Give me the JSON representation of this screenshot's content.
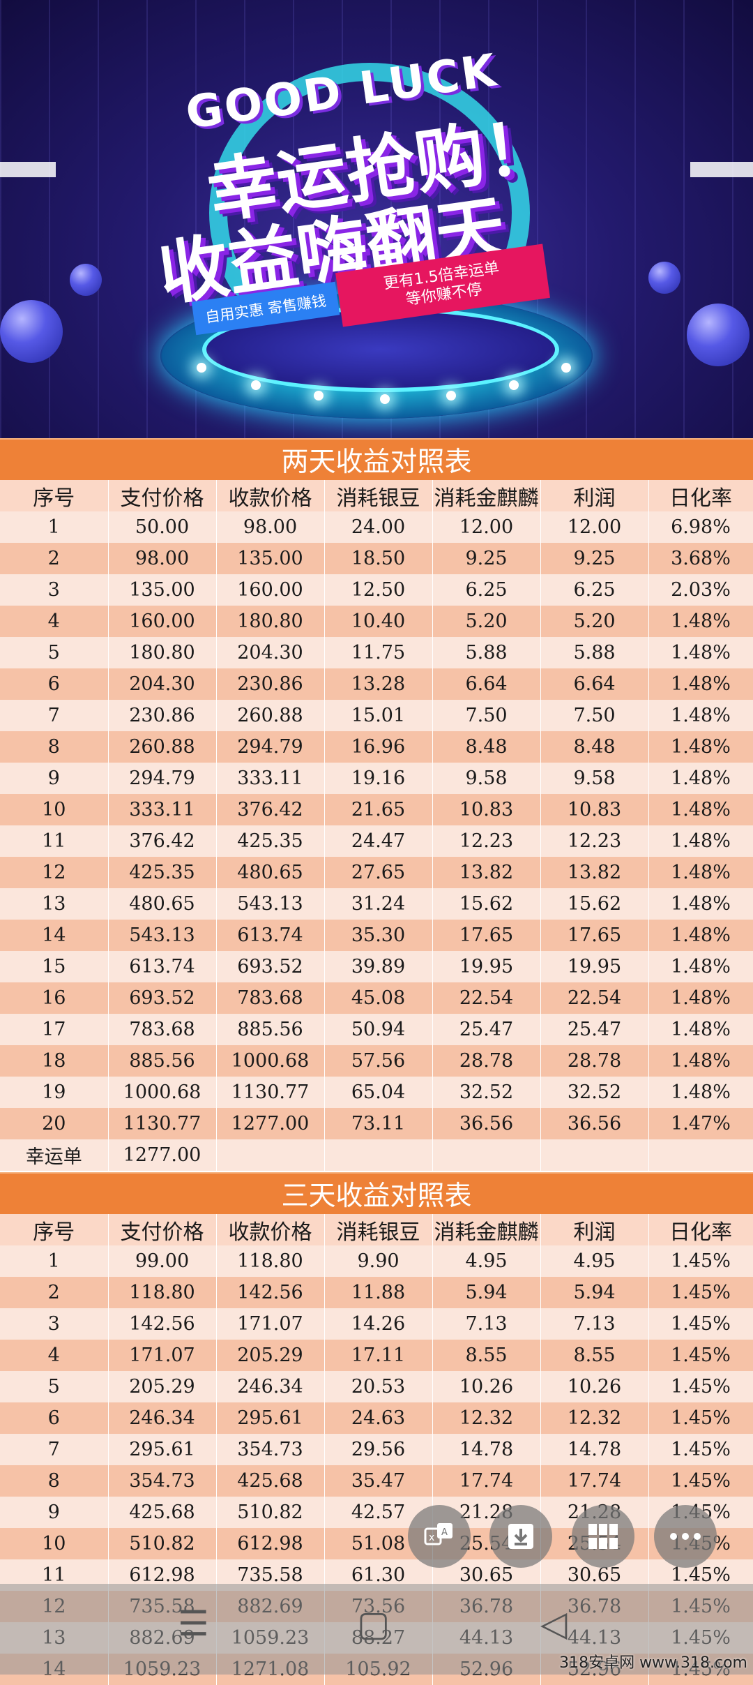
{
  "banner": {
    "title_en": "GOOD LUCK",
    "title_line1": "幸运抢购！",
    "title_line2": "收益嗨翻天",
    "tag_left": "自用实惠  寄售赚钱",
    "tag_right_line1": "更有1.5倍幸运单",
    "tag_right_line2": "等你赚不停"
  },
  "columns": [
    "序号",
    "支付价格",
    "收款价格",
    "消耗银豆",
    "消耗金麒麟",
    "利润",
    "日化率"
  ],
  "table_two_day": {
    "title": "两天收益对照表",
    "rows": [
      [
        "1",
        "50.00",
        "98.00",
        "24.00",
        "12.00",
        "12.00",
        "6.98%"
      ],
      [
        "2",
        "98.00",
        "135.00",
        "18.50",
        "9.25",
        "9.25",
        "3.68%"
      ],
      [
        "3",
        "135.00",
        "160.00",
        "12.50",
        "6.25",
        "6.25",
        "2.03%"
      ],
      [
        "4",
        "160.00",
        "180.80",
        "10.40",
        "5.20",
        "5.20",
        "1.48%"
      ],
      [
        "5",
        "180.80",
        "204.30",
        "11.75",
        "5.88",
        "5.88",
        "1.48%"
      ],
      [
        "6",
        "204.30",
        "230.86",
        "13.28",
        "6.64",
        "6.64",
        "1.48%"
      ],
      [
        "7",
        "230.86",
        "260.88",
        "15.01",
        "7.50",
        "7.50",
        "1.48%"
      ],
      [
        "8",
        "260.88",
        "294.79",
        "16.96",
        "8.48",
        "8.48",
        "1.48%"
      ],
      [
        "9",
        "294.79",
        "333.11",
        "19.16",
        "9.58",
        "9.58",
        "1.48%"
      ],
      [
        "10",
        "333.11",
        "376.42",
        "21.65",
        "10.83",
        "10.83",
        "1.48%"
      ],
      [
        "11",
        "376.42",
        "425.35",
        "24.47",
        "12.23",
        "12.23",
        "1.48%"
      ],
      [
        "12",
        "425.35",
        "480.65",
        "27.65",
        "13.82",
        "13.82",
        "1.48%"
      ],
      [
        "13",
        "480.65",
        "543.13",
        "31.24",
        "15.62",
        "15.62",
        "1.48%"
      ],
      [
        "14",
        "543.13",
        "613.74",
        "35.30",
        "17.65",
        "17.65",
        "1.48%"
      ],
      [
        "15",
        "613.74",
        "693.52",
        "39.89",
        "19.95",
        "19.95",
        "1.48%"
      ],
      [
        "16",
        "693.52",
        "783.68",
        "45.08",
        "22.54",
        "22.54",
        "1.48%"
      ],
      [
        "17",
        "783.68",
        "885.56",
        "50.94",
        "25.47",
        "25.47",
        "1.48%"
      ],
      [
        "18",
        "885.56",
        "1000.68",
        "57.56",
        "28.78",
        "28.78",
        "1.48%"
      ],
      [
        "19",
        "1000.68",
        "1130.77",
        "65.04",
        "32.52",
        "32.52",
        "1.48%"
      ],
      [
        "20",
        "1130.77",
        "1277.00",
        "73.11",
        "36.56",
        "36.56",
        "1.47%"
      ],
      [
        "幸运单",
        "1277.00",
        "",
        "",
        "",
        "",
        ""
      ]
    ]
  },
  "table_three_day": {
    "title": "三天收益对照表",
    "rows": [
      [
        "1",
        "99.00",
        "118.80",
        "9.90",
        "4.95",
        "4.95",
        "1.45%"
      ],
      [
        "2",
        "118.80",
        "142.56",
        "11.88",
        "5.94",
        "5.94",
        "1.45%"
      ],
      [
        "3",
        "142.56",
        "171.07",
        "14.26",
        "7.13",
        "7.13",
        "1.45%"
      ],
      [
        "4",
        "171.07",
        "205.29",
        "17.11",
        "8.55",
        "8.55",
        "1.45%"
      ],
      [
        "5",
        "205.29",
        "246.34",
        "20.53",
        "10.26",
        "10.26",
        "1.45%"
      ],
      [
        "6",
        "246.34",
        "295.61",
        "24.63",
        "12.32",
        "12.32",
        "1.45%"
      ],
      [
        "7",
        "295.61",
        "354.73",
        "29.56",
        "14.78",
        "14.78",
        "1.45%"
      ],
      [
        "8",
        "354.73",
        "425.68",
        "35.47",
        "17.74",
        "17.74",
        "1.45%"
      ],
      [
        "9",
        "425.68",
        "510.82",
        "42.57",
        "21.28",
        "21.28",
        "1.45%"
      ],
      [
        "10",
        "510.82",
        "612.98",
        "51.08",
        "25.54",
        "25.54",
        "1.45%"
      ],
      [
        "11",
        "612.98",
        "735.58",
        "61.30",
        "30.65",
        "30.65",
        "1.45%"
      ],
      [
        "12",
        "735.58",
        "882.69",
        "73.56",
        "36.78",
        "36.78",
        "1.45%"
      ],
      [
        "13",
        "882.69",
        "1059.23",
        "88.27",
        "44.13",
        "44.13",
        "1.45%"
      ],
      [
        "14",
        "1059.23",
        "1271.08",
        "105.92",
        "52.96",
        "52.96",
        "1.45%"
      ]
    ]
  },
  "fab_icons": [
    "translate-icon",
    "download-icon",
    "grid-icon",
    "more-icon"
  ],
  "nav_icons": [
    "menu-icon",
    "home-icon",
    "back-icon"
  ],
  "watermark": "318安卓网  www.318.com"
}
